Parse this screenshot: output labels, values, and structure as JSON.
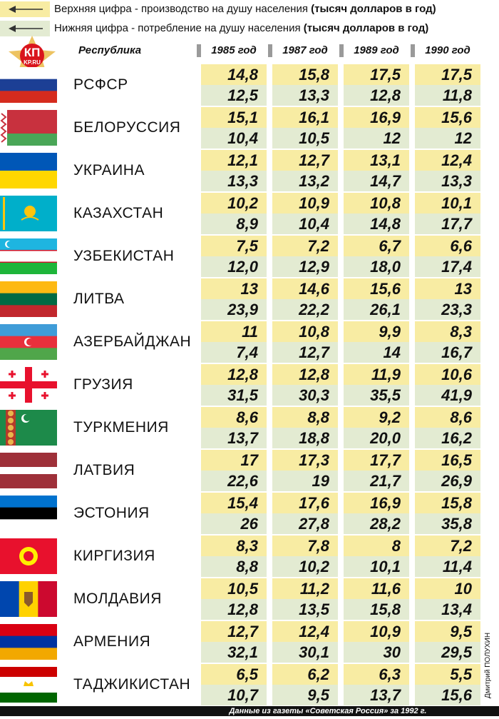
{
  "legend": [
    {
      "text": "Верхняя цифра - производство на душу населения",
      "unit": "(тысяч долларов в год)"
    },
    {
      "text": "Нижняя цифра - потребление на душу населения",
      "unit": "(тысяч долларов в год)"
    }
  ],
  "logo": {
    "top": "КП",
    "bottom": "KP.RU"
  },
  "table": {
    "header": [
      "Республика",
      "1985 год",
      "1987 год",
      "1989 год",
      "1990 год"
    ],
    "rows": [
      {
        "name": "РСФСР",
        "production": [
          "14,8",
          "15,8",
          "17,5",
          "17,5"
        ],
        "consumption": [
          "12,5",
          "13,3",
          "12,8",
          "11,8"
        ]
      },
      {
        "name": "БЕЛОРУССИЯ",
        "production": [
          "15,1",
          "16,1",
          "16,9",
          "15,6"
        ],
        "consumption": [
          "10,4",
          "10,5",
          "12",
          "12"
        ]
      },
      {
        "name": "УКРАИНА",
        "production": [
          "12,1",
          "12,7",
          "13,1",
          "12,4"
        ],
        "consumption": [
          "13,3",
          "13,2",
          "14,7",
          "13,3"
        ]
      },
      {
        "name": "КАЗАХСТАН",
        "production": [
          "10,2",
          "10,9",
          "10,8",
          "10,1"
        ],
        "consumption": [
          "8,9",
          "10,4",
          "14,8",
          "17,7"
        ]
      },
      {
        "name": "УЗБЕКИСТАН",
        "production": [
          "7,5",
          "7,2",
          "6,7",
          "6,6"
        ],
        "consumption": [
          "12,0",
          "12,9",
          "18,0",
          "17,4"
        ]
      },
      {
        "name": "ЛИТВА",
        "production": [
          "13",
          "14,6",
          "15,6",
          "13"
        ],
        "consumption": [
          "23,9",
          "22,2",
          "26,1",
          "23,3"
        ]
      },
      {
        "name": "АЗЕРБАЙДЖАН",
        "production": [
          "11",
          "10,8",
          "9,9",
          "8,3"
        ],
        "consumption": [
          "7,4",
          "12,7",
          "14",
          "16,7"
        ]
      },
      {
        "name": "ГРУЗИЯ",
        "production": [
          "12,8",
          "12,8",
          "11,9",
          "10,6"
        ],
        "consumption": [
          "31,5",
          "30,3",
          "35,5",
          "41,9"
        ]
      },
      {
        "name": "ТУРКМЕНИЯ",
        "production": [
          "8,6",
          "8,8",
          "9,2",
          "8,6"
        ],
        "consumption": [
          "13,7",
          "18,8",
          "20,0",
          "16,2"
        ]
      },
      {
        "name": "ЛАТВИЯ",
        "production": [
          "17",
          "17,3",
          "17,7",
          "16,5"
        ],
        "consumption": [
          "22,6",
          "19",
          "21,7",
          "26,9"
        ]
      },
      {
        "name": "ЭСТОНИЯ",
        "production": [
          "15,4",
          "17,6",
          "16,9",
          "15,8"
        ],
        "consumption": [
          "26",
          "27,8",
          "28,2",
          "35,8"
        ]
      },
      {
        "name": "КИРГИЗИЯ",
        "production": [
          "8,3",
          "7,8",
          "8",
          "7,2"
        ],
        "consumption": [
          "8,8",
          "10,2",
          "10,1",
          "11,4"
        ]
      },
      {
        "name": "МОЛДАВИЯ",
        "production": [
          "10,5",
          "11,2",
          "11,6",
          "10"
        ],
        "consumption": [
          "12,8",
          "13,5",
          "15,8",
          "13,4"
        ]
      },
      {
        "name": "АРМЕНИЯ",
        "production": [
          "12,7",
          "12,4",
          "10,9",
          "9,5"
        ],
        "consumption": [
          "32,1",
          "30,1",
          "30",
          "29,5"
        ]
      },
      {
        "name": "ТАДЖИКИСТАН",
        "production": [
          "6,5",
          "6,2",
          "6,3",
          "5,5"
        ],
        "consumption": [
          "10,7",
          "9,5",
          "13,7",
          "15,6"
        ]
      }
    ]
  },
  "credit": "Дмитрий ПОЛУХИН",
  "source": "Данные из газеты «Советская Россия» за 1992 г."
}
